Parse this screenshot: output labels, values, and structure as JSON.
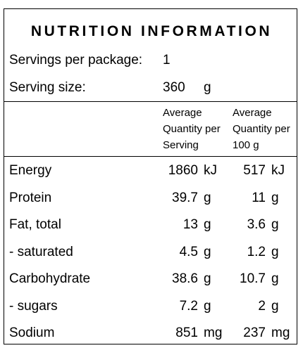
{
  "title": "NUTRITION INFORMATION",
  "servings": {
    "label": "Servings per package:",
    "value": "1"
  },
  "serving_size": {
    "label": "Serving size:",
    "value": "360",
    "unit": "g"
  },
  "columns": {
    "per_serving": [
      "Average",
      "Quantity per",
      "Serving"
    ],
    "per_100g": [
      "Average",
      "Quantity per",
      "100 g"
    ]
  },
  "rows": [
    {
      "label": "Energy",
      "serving": "1860",
      "serving_unit": "kJ",
      "per100": "517",
      "per100_unit": "kJ"
    },
    {
      "label": "Protein",
      "serving": "39.7",
      "serving_unit": "g",
      "per100": "11",
      "per100_unit": "g"
    },
    {
      "label": "Fat, total",
      "serving": "13",
      "serving_unit": "g",
      "per100": "3.6",
      "per100_unit": "g"
    },
    {
      "label": "- saturated",
      "serving": "4.5",
      "serving_unit": "g",
      "per100": "1.2",
      "per100_unit": "g"
    },
    {
      "label": "Carbohydrate",
      "serving": "38.6",
      "serving_unit": "g",
      "per100": "10.7",
      "per100_unit": "g"
    },
    {
      "label": "- sugars",
      "serving": "7.2",
      "serving_unit": "g",
      "per100": "2",
      "per100_unit": "g"
    },
    {
      "label": "Sodium",
      "serving": "851",
      "serving_unit": "mg",
      "per100": "237",
      "per100_unit": "mg"
    }
  ]
}
